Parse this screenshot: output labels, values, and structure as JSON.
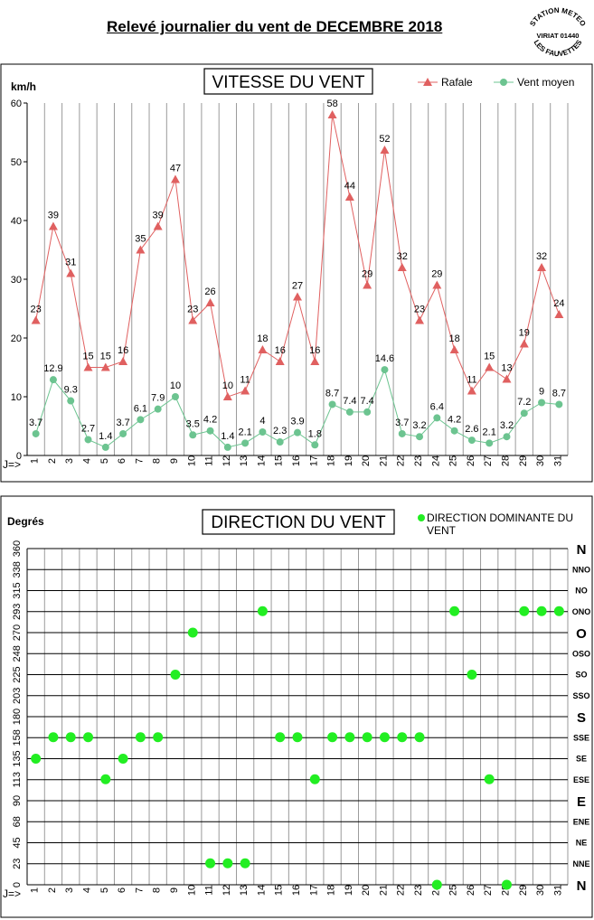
{
  "page_title": "Relevé journalier du vent de DECEMBRE 2018",
  "stamp": {
    "top": "STATION METEO",
    "middle": "VIRIAT 01440",
    "bottom": "LES FAUVETTES"
  },
  "chart_data": [
    {
      "type": "line",
      "title": "VITESSE DU VENT",
      "ylabel": "km/h",
      "xlabel": "J=>",
      "ylim": [
        0,
        60
      ],
      "yticks": [
        0,
        10,
        20,
        30,
        40,
        50,
        60
      ],
      "x": [
        1,
        2,
        3,
        4,
        5,
        6,
        7,
        8,
        9,
        10,
        11,
        12,
        13,
        14,
        15,
        16,
        17,
        18,
        19,
        20,
        21,
        22,
        23,
        24,
        25,
        26,
        27,
        28,
        29,
        30,
        31
      ],
      "legend_position": "top-right",
      "grid": "vertical",
      "series": [
        {
          "name": "Rafale",
          "color": "#E06060",
          "marker": "triangle",
          "values": [
            23,
            39,
            31,
            15,
            15,
            16,
            35,
            39,
            47,
            23,
            26,
            10,
            11,
            18,
            16,
            27,
            16,
            58,
            44,
            29,
            52,
            32,
            23,
            29,
            18,
            11,
            15,
            13,
            19,
            32,
            24
          ]
        },
        {
          "name": "Vent moyen",
          "color": "#6CC490",
          "marker": "circle",
          "values": [
            3.7,
            12.9,
            9.3,
            2.7,
            1.4,
            3.7,
            6.1,
            7.9,
            10,
            3.5,
            4.2,
            1.4,
            2.1,
            4,
            2.3,
            3.9,
            1.8,
            8.7,
            7.4,
            7.4,
            14.6,
            3.7,
            3.2,
            6.4,
            4.2,
            2.6,
            2.1,
            3.2,
            7.2,
            9,
            8.7
          ]
        }
      ]
    },
    {
      "type": "scatter",
      "title": "DIRECTION DU VENT",
      "ylabel": "Degrés",
      "xlabel": "J=>",
      "ylim": [
        0,
        360
      ],
      "yticks": [
        "0",
        "23",
        "45",
        "68",
        "90",
        "113",
        "135",
        "158",
        "180",
        "203",
        "225",
        "248",
        "270",
        "293",
        "315",
        "338",
        "360"
      ],
      "direction_labels": [
        "N",
        "NNE",
        "NE",
        "ENE",
        "E",
        "ESE",
        "SE",
        "SSE",
        "S",
        "SSO",
        "SO",
        "OSO",
        "O",
        "ONO",
        "NO",
        "NNO",
        "N"
      ],
      "x": [
        1,
        2,
        3,
        4,
        5,
        6,
        7,
        8,
        9,
        10,
        11,
        12,
        13,
        14,
        15,
        16,
        17,
        18,
        19,
        20,
        21,
        22,
        23,
        24,
        25,
        26,
        27,
        28,
        29,
        30,
        31
      ],
      "legend_position": "top-right",
      "grid": "both",
      "series": [
        {
          "name": "DIRECTION DOMINANTE DU VENT",
          "color": "#22EE22",
          "values": [
            135,
            158,
            158,
            158,
            113,
            135,
            158,
            158,
            225,
            270,
            23,
            23,
            23,
            293,
            158,
            158,
            113,
            158,
            158,
            158,
            158,
            158,
            158,
            0,
            293,
            225,
            113,
            0,
            293,
            293,
            293
          ]
        }
      ]
    }
  ]
}
